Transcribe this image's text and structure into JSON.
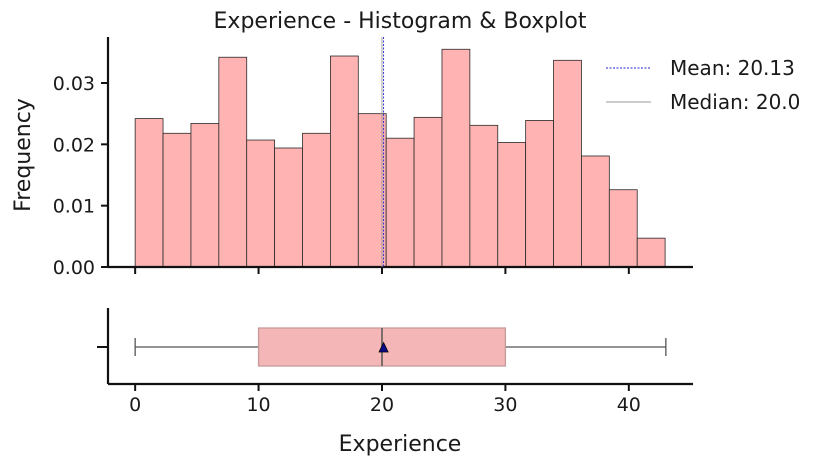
{
  "chart_data": {
    "type": "histogram+boxplot",
    "title": "Experience - Histogram & Boxplot",
    "xlabel": "Experience",
    "ylabel": "Frequency",
    "xlim": [
      -2.2,
      45.2
    ],
    "ylim": [
      0,
      0.0375
    ],
    "x_ticks": [
      0,
      10,
      20,
      30,
      40
    ],
    "y_ticks": [
      0.0,
      0.01,
      0.02,
      0.03
    ],
    "y_tick_labels": [
      "0.00",
      "0.01",
      "0.02",
      "0.03"
    ],
    "histogram": {
      "bin_start": 0,
      "bin_width": 2.26,
      "densities": [
        0.0242,
        0.0218,
        0.0234,
        0.0342,
        0.0207,
        0.0194,
        0.0218,
        0.0344,
        0.025,
        0.021,
        0.0244,
        0.0355,
        0.0231,
        0.0203,
        0.0239,
        0.0337,
        0.0181,
        0.0126,
        0.0047
      ],
      "fill_color": "#ffb3b3",
      "edge_color": "#2a2a2a"
    },
    "mean": 20.13,
    "median": 20.0,
    "legend": [
      {
        "label": "Mean: 20.13",
        "color": "#2222cc",
        "style": "dotted"
      },
      {
        "label": "Median: 20.0",
        "color": "#999999",
        "style": "solid"
      }
    ],
    "legend_position": "top-right",
    "boxplot": {
      "min": 0,
      "q1": 10,
      "median": 20,
      "q3": 30,
      "max": 43,
      "mean": 20.13,
      "box_color": "#f4b6b6",
      "mean_marker_color": "#0a0a8a"
    }
  }
}
